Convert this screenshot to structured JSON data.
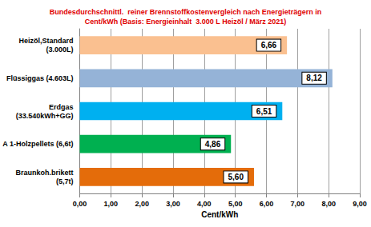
{
  "chart_data": {
    "type": "bar",
    "orientation": "horizontal",
    "title": "Bundesdurchschnittl.  reiner Brennstoffkostenvergleich nach Energieträgern in\nCent/kWh (Basis: Energieinhalt  3.000 L Heizöl / März 2021)",
    "x_label": "Cent/kWh",
    "categories": [
      "Heizöl,Standard\n(3.000L)",
      "Flüssiggas (4.603L)",
      "Erdgas\n(33.540kWh+GG)",
      "A 1-Holzpellets (6,6t)",
      "Braunkoh.brikett\n(5,7t)"
    ],
    "values": [
      6.66,
      8.12,
      6.51,
      4.86,
      5.6
    ],
    "value_labels": [
      "6,66",
      "8,12",
      "6,51",
      "4,86",
      "5,60"
    ],
    "colors": [
      "#fac090",
      "#95b3d7",
      "#00b0f0",
      "#00b050",
      "#e46c0a"
    ],
    "xlim": [
      0,
      9
    ],
    "xticks": [
      {
        "value": 0,
        "label": "0,00"
      },
      {
        "value": 1,
        "label": "1,00"
      },
      {
        "value": 2,
        "label": "2,00"
      },
      {
        "value": 3,
        "label": "3,00"
      },
      {
        "value": 4,
        "label": "4,00"
      },
      {
        "value": 5,
        "label": "5,00"
      },
      {
        "value": 6,
        "label": "6,00"
      },
      {
        "value": 7,
        "label": "7,00"
      },
      {
        "value": 8,
        "label": "8,00"
      },
      {
        "value": 9,
        "label": "9,00"
      }
    ],
    "grid": true,
    "data_labels": true
  }
}
